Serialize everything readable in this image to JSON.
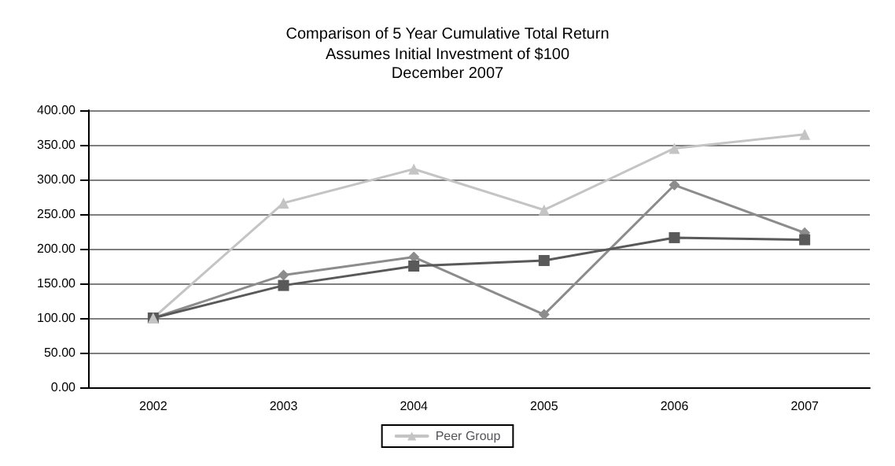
{
  "chart_data": {
    "type": "line",
    "title": "Comparison of 5 Year Cumulative Total Return",
    "subtitle": "Assumes Initial Investment of $100",
    "annotations": [
      "December 2007"
    ],
    "categories": [
      "2002",
      "2003",
      "2004",
      "2005",
      "2006",
      "2007"
    ],
    "series": [
      {
        "color": "#8c8c8c",
        "marker": "diamond",
        "values": [
          100,
          162,
          188,
          105,
          292,
          223
        ]
      },
      {
        "color": "#595959",
        "marker": "square",
        "values": [
          100,
          147,
          175,
          183,
          216,
          213
        ]
      },
      {
        "name": "Peer Group",
        "color": "#c4c4c4",
        "marker": "triangle",
        "values": [
          100,
          266,
          315,
          256,
          345,
          365
        ]
      }
    ],
    "ylim": [
      0,
      400
    ],
    "yticks": [
      {
        "value": 0,
        "label": "0.00"
      },
      {
        "value": 50,
        "label": "50.00"
      },
      {
        "value": 100,
        "label": "100.00"
      },
      {
        "value": 150,
        "label": "150.00"
      },
      {
        "value": 200,
        "label": "200.00"
      },
      {
        "value": 250,
        "label": "250.00"
      },
      {
        "value": 300,
        "label": "300.00"
      },
      {
        "value": 350,
        "label": "350.00"
      },
      {
        "value": 400,
        "label": "400.00"
      }
    ],
    "grid": "y",
    "legend": "bottom",
    "line_style": "solid"
  }
}
